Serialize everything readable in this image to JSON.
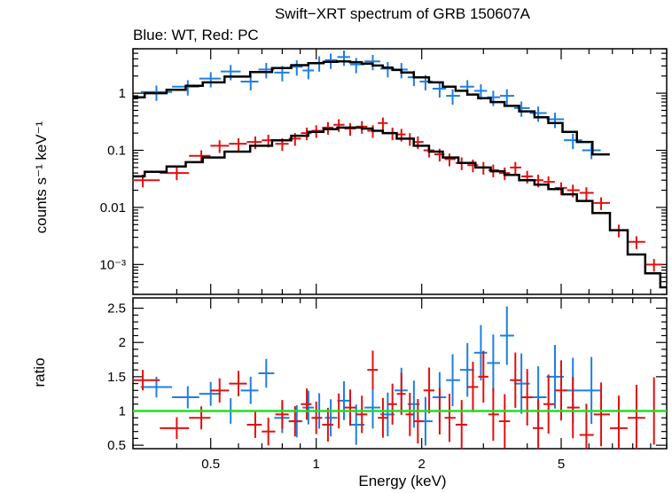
{
  "chart_data": [
    {
      "type": "scatter",
      "title": "Swift−XRT spectrum of GRB 150607A",
      "subtitle": "Blue: WT, Red: PC",
      "xlabel": "",
      "ylabel": "counts s⁻¹ keV⁻¹",
      "xscale": "log",
      "yscale": "log",
      "xlim": [
        0.3,
        10
      ],
      "ylim": [
        0.0003,
        6
      ],
      "x_ticks": [
        0.5,
        1,
        2,
        5
      ],
      "y_tick_labels": [
        "1",
        "0.1",
        "0.01",
        "10⁻³"
      ],
      "y_ticks": [
        1,
        0.1,
        0.01,
        0.001
      ],
      "colors": {
        "WT": "#1e7fe0",
        "PC": "#e01010",
        "model": "#000000"
      },
      "series": [
        {
          "name": "WT",
          "color": "#1e7fe0",
          "x": [
            0.35,
            0.43,
            0.5,
            0.57,
            0.65,
            0.72,
            0.8,
            0.88,
            0.95,
            1.02,
            1.1,
            1.2,
            1.3,
            1.45,
            1.6,
            1.75,
            1.9,
            2.05,
            2.25,
            2.45,
            2.7,
            2.95,
            3.2,
            3.5,
            3.85,
            4.3,
            4.8,
            5.4,
            6.1
          ],
          "y": [
            1.05,
            1.3,
            1.8,
            2.4,
            1.6,
            2.6,
            2.3,
            2.9,
            2.5,
            3.4,
            3.8,
            4.3,
            3.2,
            3.6,
            2.7,
            2.6,
            1.9,
            1.6,
            1.2,
            0.9,
            1.3,
            1.1,
            0.85,
            0.9,
            0.55,
            0.45,
            0.35,
            0.15,
            0.1
          ],
          "model_x": [
            0.3,
            0.35,
            0.4,
            0.45,
            0.5,
            0.6,
            0.7,
            0.8,
            0.9,
            1.0,
            1.1,
            1.2,
            1.3,
            1.4,
            1.5,
            1.6,
            1.7,
            1.8,
            2.0,
            2.2,
            2.4,
            2.6,
            2.8,
            3.0,
            3.3,
            3.6,
            4.0,
            4.4,
            4.8,
            5.3,
            5.8,
            6.5
          ],
          "model_y": [
            0.85,
            1.0,
            1.15,
            1.35,
            1.55,
            1.95,
            2.35,
            2.75,
            3.1,
            3.35,
            3.55,
            3.6,
            3.5,
            3.3,
            3.05,
            2.8,
            2.55,
            2.3,
            1.9,
            1.55,
            1.3,
            1.1,
            0.95,
            0.82,
            0.7,
            0.6,
            0.48,
            0.38,
            0.3,
            0.21,
            0.14,
            0.085
          ]
        },
        {
          "name": "PC",
          "color": "#e01010",
          "x": [
            0.32,
            0.4,
            0.47,
            0.53,
            0.6,
            0.67,
            0.73,
            0.8,
            0.87,
            0.94,
            1.0,
            1.08,
            1.16,
            1.25,
            1.35,
            1.45,
            1.55,
            1.65,
            1.75,
            1.85,
            1.95,
            2.1,
            2.25,
            2.4,
            2.6,
            2.8,
            3.0,
            3.2,
            3.45,
            3.7,
            4.0,
            4.3,
            4.6,
            5.0,
            5.4,
            5.9,
            6.5,
            7.3,
            8.2,
            9.2
          ],
          "y": [
            0.03,
            0.04,
            0.08,
            0.12,
            0.13,
            0.14,
            0.15,
            0.13,
            0.16,
            0.2,
            0.22,
            0.25,
            0.28,
            0.24,
            0.26,
            0.22,
            0.3,
            0.2,
            0.19,
            0.16,
            0.14,
            0.1,
            0.085,
            0.07,
            0.06,
            0.055,
            0.05,
            0.045,
            0.04,
            0.05,
            0.035,
            0.03,
            0.028,
            0.022,
            0.02,
            0.018,
            0.012,
            0.004,
            0.0025,
            0.001
          ],
          "model_x": [
            0.3,
            0.35,
            0.4,
            0.45,
            0.5,
            0.6,
            0.7,
            0.8,
            0.9,
            1.0,
            1.1,
            1.2,
            1.3,
            1.4,
            1.5,
            1.6,
            1.8,
            2.0,
            2.2,
            2.4,
            2.7,
            3.0,
            3.3,
            3.6,
            4.0,
            4.4,
            4.8,
            5.3,
            5.8,
            6.5,
            7.3,
            8.2,
            9.2,
            10
          ],
          "model_y": [
            0.035,
            0.042,
            0.052,
            0.062,
            0.075,
            0.095,
            0.12,
            0.15,
            0.18,
            0.21,
            0.235,
            0.25,
            0.25,
            0.24,
            0.22,
            0.2,
            0.16,
            0.12,
            0.095,
            0.075,
            0.06,
            0.05,
            0.043,
            0.037,
            0.03,
            0.025,
            0.021,
            0.017,
            0.013,
            0.008,
            0.004,
            0.0015,
            0.0007,
            0.0004
          ]
        }
      ]
    },
    {
      "type": "scatter",
      "title": "",
      "xlabel": "Energy (keV)",
      "ylabel": "ratio",
      "xscale": "log",
      "yscale": "linear",
      "xlim": [
        0.3,
        10
      ],
      "ylim": [
        0.45,
        2.65
      ],
      "x_ticks": [
        0.5,
        1,
        2,
        5
      ],
      "x_tick_labels": [
        "0.5",
        "1",
        "2",
        "5"
      ],
      "y_ticks": [
        0.5,
        1,
        1.5,
        2,
        2.5
      ],
      "y_tick_labels": [
        "0.5",
        "1",
        "1.5",
        "2",
        "2.5"
      ],
      "reference_line": {
        "y": 1,
        "color": "#22dd22"
      },
      "series": [
        {
          "name": "WT",
          "color": "#1e7fe0",
          "x": [
            0.35,
            0.43,
            0.5,
            0.57,
            0.65,
            0.72,
            0.8,
            0.88,
            0.95,
            1.02,
            1.1,
            1.2,
            1.3,
            1.45,
            1.6,
            1.75,
            1.9,
            2.05,
            2.25,
            2.45,
            2.7,
            2.95,
            3.2,
            3.5,
            3.85,
            4.3,
            4.8,
            5.4,
            6.1
          ],
          "y": [
            1.35,
            1.2,
            1.25,
            1.0,
            1.3,
            1.55,
            0.9,
            0.85,
            1.05,
            1.0,
            0.9,
            1.15,
            0.8,
            1.05,
            0.95,
            1.3,
            1.1,
            0.85,
            1.2,
            1.45,
            1.6,
            1.85,
            1.7,
            2.1,
            1.4,
            1.2,
            1.5,
            1.3,
            1.3
          ]
        },
        {
          "name": "PC",
          "color": "#e01010",
          "x": [
            0.32,
            0.4,
            0.47,
            0.53,
            0.6,
            0.67,
            0.73,
            0.8,
            0.87,
            0.94,
            1.0,
            1.08,
            1.16,
            1.25,
            1.35,
            1.45,
            1.55,
            1.65,
            1.75,
            1.85,
            1.95,
            2.1,
            2.25,
            2.4,
            2.6,
            2.8,
            3.0,
            3.2,
            3.45,
            3.7,
            4.0,
            4.3,
            4.6,
            5.0,
            5.4,
            5.9,
            6.5,
            7.3,
            8.2,
            9.2
          ],
          "y": [
            1.45,
            0.75,
            0.9,
            1.3,
            1.4,
            0.8,
            0.7,
            0.95,
            0.85,
            1.1,
            0.9,
            0.8,
            1.0,
            1.05,
            0.95,
            1.6,
            0.9,
            1.1,
            1.25,
            0.95,
            0.85,
            1.3,
            1.0,
            0.9,
            0.8,
            1.35,
            1.5,
            0.95,
            0.85,
            1.45,
            1.2,
            0.75,
            1.1,
            1.3,
            1.05,
            0.65,
            0.95,
            0.75,
            0.9,
            1.0
          ]
        }
      ]
    }
  ]
}
